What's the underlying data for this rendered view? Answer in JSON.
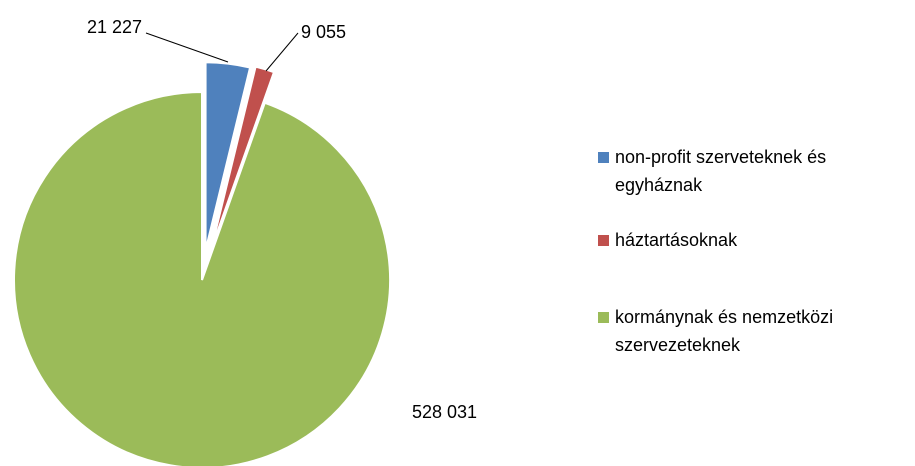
{
  "chart_data": {
    "type": "pie",
    "categories": [
      "non-profit szerveteknek és egyháznak",
      "háztartásoknak",
      "kormánynak és nemzetközi szervezeteknek"
    ],
    "values": [
      21227,
      9055,
      528031
    ],
    "value_labels": [
      "21 227",
      "9 055",
      "528 031"
    ],
    "colors": [
      "#4f81bd",
      "#c0504d",
      "#9bbb59"
    ],
    "legend": "right"
  }
}
